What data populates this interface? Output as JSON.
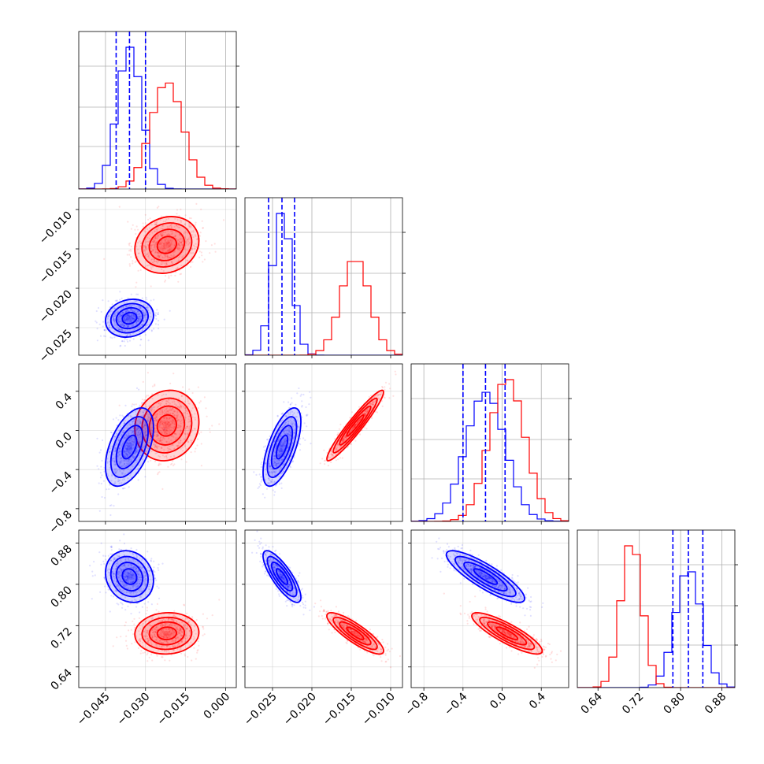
{
  "chart_data": {
    "type": "corner",
    "colors": {
      "series_a": "#0000ff",
      "series_b": "#ff0000"
    },
    "grid": true,
    "parameters": [
      {
        "range": [
          -0.055,
          0.004
        ],
        "ticks": [
          -0.045,
          -0.03,
          -0.015,
          0.0
        ],
        "tick_labels": [
          "−0.045",
          "−0.030",
          "−0.015",
          "0.000"
        ]
      },
      {
        "range": [
          -0.0285,
          -0.0085
        ],
        "ticks": [
          -0.025,
          -0.02,
          -0.015,
          -0.01
        ],
        "tick_labels": [
          "−0.025",
          "−0.020",
          "−0.015",
          "−0.010"
        ]
      },
      {
        "range": [
          -0.93,
          0.68
        ],
        "ticks": [
          -0.8,
          -0.4,
          0.0,
          0.4
        ],
        "tick_labels": [
          "−0.8",
          "−0.4",
          "0.0",
          "0.4"
        ]
      },
      {
        "range": [
          0.6,
          0.905
        ],
        "ticks": [
          0.64,
          0.72,
          0.8,
          0.88
        ],
        "tick_labels": [
          "0.64",
          "0.72",
          "0.80",
          "0.88"
        ]
      }
    ],
    "series": [
      {
        "color": "#0000ff",
        "mean": [
          -0.036,
          -0.0238,
          -0.17,
          0.815
        ],
        "std": [
          0.0045,
          0.0012,
          0.2,
          0.025
        ],
        "corr": [
          [
            1.0,
            0.15,
            0.5,
            -0.15
          ],
          [
            0.15,
            1.0,
            0.65,
            -0.8
          ],
          [
            0.5,
            0.65,
            1.0,
            -0.85
          ],
          [
            -0.15,
            -0.8,
            -0.85,
            1.0
          ]
        ],
        "quantiles": [
          [
            -0.041,
            -0.036,
            -0.03
          ],
          [
            -0.0255,
            -0.0238,
            -0.0222
          ],
          [
            -0.4,
            -0.17,
            0.03
          ],
          [
            0.785,
            0.815,
            0.843
          ]
        ]
      },
      {
        "color": "#ff0000",
        "mean": [
          -0.022,
          -0.0145,
          0.05,
          0.705
        ],
        "std": [
          0.006,
          0.0018,
          0.18,
          0.02
        ],
        "corr": [
          [
            1.0,
            0.15,
            0.1,
            0.05
          ],
          [
            0.15,
            1.0,
            0.95,
            -0.85
          ],
          [
            0.1,
            0.95,
            1.0,
            -0.85
          ],
          [
            0.05,
            -0.85,
            -0.85,
            1.0
          ]
        ],
        "quantiles": []
      }
    ]
  }
}
